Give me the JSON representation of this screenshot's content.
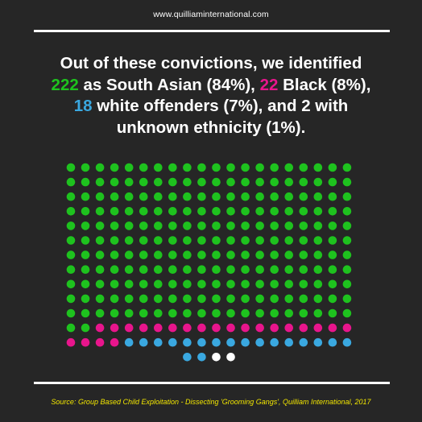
{
  "header": {
    "url": "www.quilliaminternational.com"
  },
  "headline": {
    "line1": "Out of these convictions, we identified",
    "line2_num": "222",
    "line2_mid": " as South Asian (84%), ",
    "line2_num2": "22",
    "line2_end": " Black (8%),",
    "line3_num": "18",
    "line3_end": " white offenders (7%), and 2 with",
    "line4": "unknown ethnicity (1%)."
  },
  "colors": {
    "background": "#262626",
    "south_asian": "#1ec21e",
    "black": "#e8158c",
    "white_offenders": "#3aa8e0",
    "unknown": "#ffffff",
    "source_text": "#f2e600"
  },
  "chart_data": {
    "type": "waffle",
    "columns": 20,
    "series": [
      {
        "name": "South Asian",
        "value": 222,
        "percent": 84,
        "color": "#1ec21e"
      },
      {
        "name": "Black",
        "value": 22,
        "percent": 8,
        "color": "#e8158c"
      },
      {
        "name": "white offenders",
        "value": 18,
        "percent": 7,
        "color": "#3aa8e0"
      },
      {
        "name": "unknown ethnicity",
        "value": 2,
        "percent": 1,
        "color": "#ffffff"
      }
    ],
    "total": 264
  },
  "footer": {
    "source": "Source: Group Based Child Exploitation - Dissecting 'Grooming Gangs', Quilliam International, 2017"
  }
}
